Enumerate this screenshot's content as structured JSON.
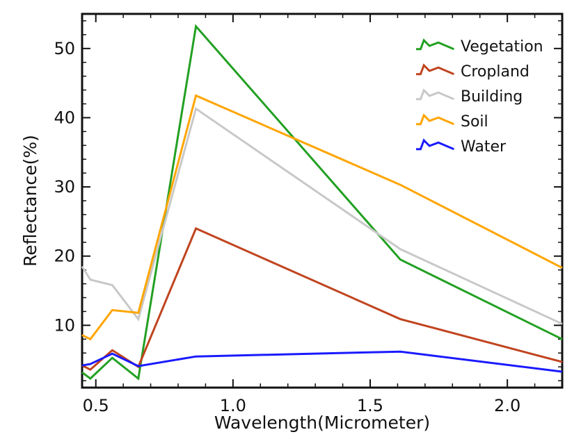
{
  "chart_data": {
    "type": "line",
    "xlabel": "Wavelength(Micrometer)",
    "ylabel": "Reflectance(%)",
    "xlim": [
      0.45,
      2.2
    ],
    "ylim": [
      1,
      55
    ],
    "xticks": [
      0.5,
      1.0,
      1.5,
      2.0
    ],
    "xtick_labels": [
      "0.5",
      "1.0",
      "1.5",
      "2.0"
    ],
    "yticks": [
      10,
      20,
      30,
      40,
      50
    ],
    "ytick_labels": [
      "10",
      "20",
      "30",
      "40",
      "50"
    ],
    "legend_position": "top-right",
    "grid": false,
    "x": [
      0.45,
      0.48,
      0.56,
      0.655,
      0.865,
      1.61,
      2.2
    ],
    "series": [
      {
        "name": "Vegetation",
        "color": "#22a022",
        "values": [
          3.2,
          2.3,
          5.3,
          2.3,
          53.2,
          19.5,
          8.0
        ]
      },
      {
        "name": "Cropland",
        "color": "#c0441f",
        "values": [
          4.2,
          3.6,
          6.4,
          4.0,
          24.0,
          10.9,
          4.7
        ]
      },
      {
        "name": "Building",
        "color": "#c8c8c8",
        "values": [
          18.5,
          16.6,
          15.8,
          10.9,
          41.3,
          21.0,
          10.2
        ]
      },
      {
        "name": "Soil",
        "color": "#ffa500",
        "values": [
          8.6,
          8.0,
          12.2,
          11.8,
          43.2,
          30.3,
          18.3
        ]
      },
      {
        "name": "Water",
        "color": "#1a1aff",
        "values": [
          4.2,
          4.4,
          5.9,
          4.1,
          5.5,
          6.2,
          3.3
        ]
      }
    ]
  }
}
